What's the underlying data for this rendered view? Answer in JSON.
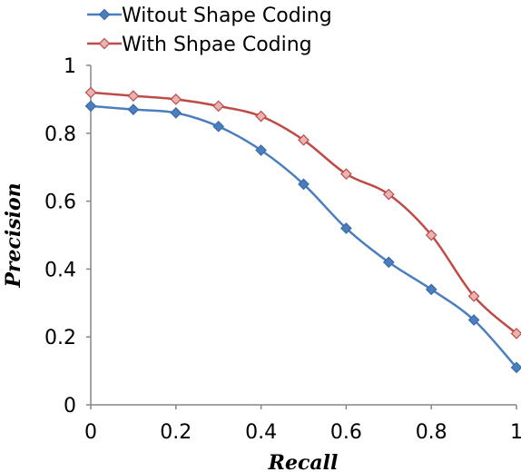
{
  "chart_data": {
    "type": "line",
    "title": "",
    "xlabel": "Recall",
    "ylabel": "Precision",
    "xlim": [
      0,
      1
    ],
    "ylim": [
      0,
      1
    ],
    "x_ticks": [
      "0",
      "0.2",
      "0.4",
      "0.6",
      "0.8",
      "1"
    ],
    "y_ticks": [
      "0",
      "0.2",
      "0.4",
      "0.6",
      "0.8",
      "1"
    ],
    "grid": false,
    "legend_position": "top-left",
    "x": [
      0,
      0.1,
      0.2,
      0.3,
      0.4,
      0.5,
      0.6,
      0.7,
      0.8,
      0.9,
      1.0
    ],
    "series": [
      {
        "name": "Witout Shape Coding",
        "color": "#4a7ebf",
        "marker": "filled-diamond",
        "values": [
          0.88,
          0.87,
          0.86,
          0.82,
          0.75,
          0.65,
          0.52,
          0.42,
          0.34,
          0.25,
          0.11
        ]
      },
      {
        "name": "With Shpae Coding",
        "color": "#be4b48",
        "marker": "light-diamond",
        "values": [
          0.92,
          0.91,
          0.9,
          0.88,
          0.85,
          0.78,
          0.68,
          0.62,
          0.5,
          0.32,
          0.21
        ]
      }
    ]
  }
}
